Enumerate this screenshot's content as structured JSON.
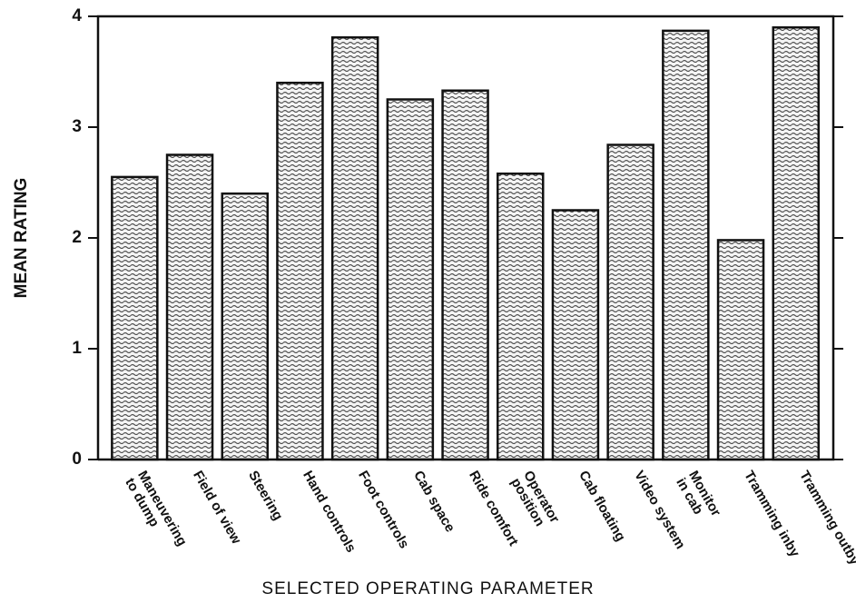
{
  "chart_data": {
    "type": "bar",
    "y_label": "MEAN RATING",
    "x_label": "SELECTED OPERATING PARAMETER",
    "categories": [
      "Maneuvering\nto dump",
      "Field of view",
      "Steering",
      "Hand controls",
      "Foot controls",
      "Cab space",
      "Ride comfort",
      "Operator\nposition",
      "Cab floating",
      "Video system",
      "Monitor\nin cab",
      "Tramming inby",
      "Tramming outby"
    ],
    "values": [
      2.55,
      2.75,
      2.4,
      3.4,
      3.81,
      3.25,
      3.33,
      2.58,
      2.25,
      2.84,
      3.87,
      1.98,
      3.9
    ],
    "color": "#444444",
    "ylim": [
      0,
      4
    ],
    "yticks": [
      0,
      1,
      2,
      3,
      4
    ],
    "grid": false
  }
}
